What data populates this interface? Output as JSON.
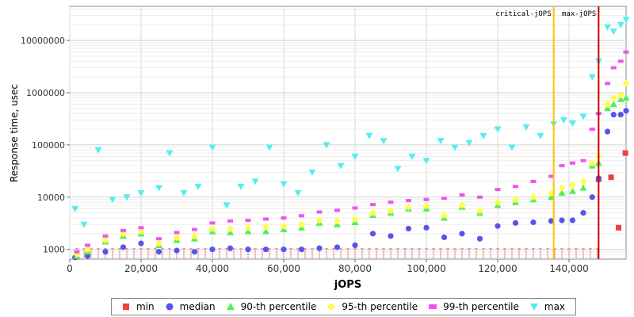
{
  "chart_data": {
    "type": "scatter",
    "xlabel": "jOPS",
    "ylabel": "Response time, usec",
    "y_scale": "log",
    "xlim": [
      0,
      156000
    ],
    "ylim": [
      650,
      45000000
    ],
    "x_ticks": [
      0,
      20000,
      40000,
      60000,
      80000,
      100000,
      120000,
      140000
    ],
    "x_tick_labels": [
      "0",
      "20,000",
      "40,000",
      "60,000",
      "80,000",
      "100,000",
      "120,000",
      "140,000"
    ],
    "y_ticks": [
      1000,
      10000,
      100000,
      1000000,
      10000000
    ],
    "y_tick_labels": [
      "1000",
      "10000",
      "100000",
      "1000000",
      "10000000"
    ],
    "grid": true,
    "legend_position": "bottom",
    "markers": [
      {
        "label": "critical-jOPS",
        "x": 135700,
        "color": "#FFC000"
      },
      {
        "label": "max-jOPS",
        "x": 148300,
        "color": "#CC0000"
      }
    ],
    "series": [
      {
        "name": "min",
        "color": "#F04040",
        "shape": "square",
        "points": [
          [
            148300,
            22000
          ],
          [
            151800,
            24000
          ],
          [
            153900,
            2600
          ],
          [
            155800,
            70000
          ]
        ]
      },
      {
        "name": "median",
        "color": "#5555EE",
        "shape": "circle",
        "points": [
          [
            1500,
            700
          ],
          [
            5000,
            750
          ],
          [
            10000,
            900
          ],
          [
            15000,
            1100
          ],
          [
            20000,
            1300
          ],
          [
            25000,
            900
          ],
          [
            30000,
            950
          ],
          [
            35000,
            900
          ],
          [
            40000,
            1000
          ],
          [
            45000,
            1050
          ],
          [
            50000,
            1000
          ],
          [
            55000,
            1000
          ],
          [
            60000,
            1000
          ],
          [
            65000,
            1000
          ],
          [
            70000,
            1050
          ],
          [
            75000,
            1100
          ],
          [
            80000,
            1200
          ],
          [
            85000,
            2000
          ],
          [
            90000,
            1800
          ],
          [
            95000,
            2500
          ],
          [
            100000,
            2600
          ],
          [
            105000,
            1700
          ],
          [
            110000,
            2000
          ],
          [
            115000,
            1600
          ],
          [
            120000,
            2800
          ],
          [
            125000,
            3200
          ],
          [
            130000,
            3300
          ],
          [
            135000,
            3500
          ],
          [
            138000,
            3600
          ],
          [
            141000,
            3600
          ],
          [
            144000,
            5000
          ],
          [
            146500,
            10000
          ],
          [
            148300,
            23000
          ],
          [
            150800,
            180000
          ],
          [
            152500,
            380000
          ],
          [
            154500,
            380000
          ],
          [
            156000,
            450000
          ]
        ]
      },
      {
        "name": "90-th percentile",
        "color": "#55EE55",
        "shape": "triangle-up",
        "points": [
          [
            2000,
            750
          ],
          [
            5000,
            900
          ],
          [
            10000,
            1400
          ],
          [
            15000,
            1800
          ],
          [
            20000,
            2000
          ],
          [
            25000,
            1200
          ],
          [
            30000,
            1500
          ],
          [
            35000,
            1600
          ],
          [
            40000,
            2200
          ],
          [
            45000,
            2100
          ],
          [
            50000,
            2200
          ],
          [
            55000,
            2200
          ],
          [
            60000,
            2400
          ],
          [
            65000,
            2600
          ],
          [
            70000,
            3200
          ],
          [
            75000,
            3000
          ],
          [
            80000,
            3300
          ],
          [
            85000,
            4500
          ],
          [
            90000,
            5000
          ],
          [
            95000,
            6000
          ],
          [
            100000,
            6000
          ],
          [
            105000,
            4000
          ],
          [
            110000,
            6500
          ],
          [
            115000,
            5000
          ],
          [
            120000,
            7000
          ],
          [
            125000,
            8000
          ],
          [
            130000,
            9000
          ],
          [
            135000,
            10000
          ],
          [
            138000,
            12000
          ],
          [
            141000,
            13000
          ],
          [
            144000,
            15000
          ],
          [
            146500,
            40000
          ],
          [
            148300,
            45000
          ],
          [
            150800,
            500000
          ],
          [
            152500,
            600000
          ],
          [
            154500,
            750000
          ],
          [
            156000,
            800000
          ]
        ]
      },
      {
        "name": "95-th percentile",
        "color": "#FFFF44",
        "shape": "diamond",
        "points": [
          [
            2000,
            800
          ],
          [
            5000,
            1000
          ],
          [
            10000,
            1500
          ],
          [
            15000,
            2000
          ],
          [
            20000,
            2200
          ],
          [
            25000,
            1300
          ],
          [
            30000,
            1700
          ],
          [
            35000,
            1800
          ],
          [
            40000,
            2500
          ],
          [
            45000,
            2500
          ],
          [
            50000,
            2600
          ],
          [
            55000,
            2700
          ],
          [
            60000,
            2800
          ],
          [
            65000,
            3000
          ],
          [
            70000,
            3600
          ],
          [
            75000,
            3500
          ],
          [
            80000,
            3800
          ],
          [
            85000,
            5000
          ],
          [
            90000,
            5500
          ],
          [
            95000,
            6500
          ],
          [
            100000,
            6800
          ],
          [
            105000,
            4500
          ],
          [
            110000,
            7000
          ],
          [
            115000,
            5500
          ],
          [
            120000,
            8000
          ],
          [
            125000,
            9000
          ],
          [
            130000,
            10000
          ],
          [
            135000,
            12000
          ],
          [
            138000,
            15000
          ],
          [
            141000,
            17000
          ],
          [
            144000,
            20000
          ],
          [
            146500,
            45000
          ],
          [
            148300,
            60000
          ],
          [
            150800,
            600000
          ],
          [
            152500,
            800000
          ],
          [
            154500,
            900000
          ],
          [
            156000,
            1500000
          ]
        ]
      },
      {
        "name": "99-th percentile",
        "color": "#EE55EE",
        "shape": "rect",
        "points": [
          [
            2000,
            900
          ],
          [
            5000,
            1200
          ],
          [
            10000,
            1800
          ],
          [
            15000,
            2300
          ],
          [
            20000,
            2600
          ],
          [
            25000,
            1600
          ],
          [
            30000,
            2100
          ],
          [
            35000,
            2400
          ],
          [
            40000,
            3200
          ],
          [
            45000,
            3500
          ],
          [
            50000,
            3600
          ],
          [
            55000,
            3800
          ],
          [
            60000,
            4000
          ],
          [
            65000,
            4400
          ],
          [
            70000,
            5200
          ],
          [
            75000,
            5600
          ],
          [
            80000,
            6200
          ],
          [
            85000,
            7200
          ],
          [
            90000,
            8000
          ],
          [
            95000,
            8600
          ],
          [
            100000,
            9000
          ],
          [
            105000,
            9500
          ],
          [
            110000,
            11000
          ],
          [
            115000,
            10000
          ],
          [
            120000,
            14000
          ],
          [
            125000,
            16000
          ],
          [
            130000,
            20000
          ],
          [
            135000,
            25000
          ],
          [
            138000,
            40000
          ],
          [
            141000,
            45000
          ],
          [
            144000,
            50000
          ],
          [
            146500,
            200000
          ],
          [
            148300,
            400000
          ],
          [
            150800,
            1500000
          ],
          [
            152500,
            3000000
          ],
          [
            154500,
            4000000
          ],
          [
            156000,
            6000000
          ]
        ]
      },
      {
        "name": "max",
        "color": "#55EEEE",
        "shape": "triangle-down",
        "points": [
          [
            1500,
            6000
          ],
          [
            4000,
            3000
          ],
          [
            8000,
            80000
          ],
          [
            12000,
            9000
          ],
          [
            16000,
            10000
          ],
          [
            20000,
            12000
          ],
          [
            25000,
            15000
          ],
          [
            28000,
            70000
          ],
          [
            32000,
            12000
          ],
          [
            36000,
            16000
          ],
          [
            40000,
            90000
          ],
          [
            44000,
            7000
          ],
          [
            48000,
            16000
          ],
          [
            52000,
            20000
          ],
          [
            56000,
            90000
          ],
          [
            60000,
            18000
          ],
          [
            64000,
            12000
          ],
          [
            68000,
            30000
          ],
          [
            72000,
            100000
          ],
          [
            76000,
            40000
          ],
          [
            80000,
            60000
          ],
          [
            84000,
            150000
          ],
          [
            88000,
            120000
          ],
          [
            92000,
            35000
          ],
          [
            96000,
            60000
          ],
          [
            100000,
            50000
          ],
          [
            104000,
            120000
          ],
          [
            108000,
            90000
          ],
          [
            112000,
            110000
          ],
          [
            116000,
            150000
          ],
          [
            120000,
            200000
          ],
          [
            124000,
            90000
          ],
          [
            128000,
            220000
          ],
          [
            132000,
            150000
          ],
          [
            135700,
            250000
          ],
          [
            138500,
            300000
          ],
          [
            141000,
            260000
          ],
          [
            144000,
            350000
          ],
          [
            146500,
            2000000
          ],
          [
            148300,
            4000000
          ],
          [
            150800,
            18000000
          ],
          [
            152500,
            15000000
          ],
          [
            154500,
            20000000
          ],
          [
            156000,
            25000000
          ]
        ]
      }
    ]
  }
}
